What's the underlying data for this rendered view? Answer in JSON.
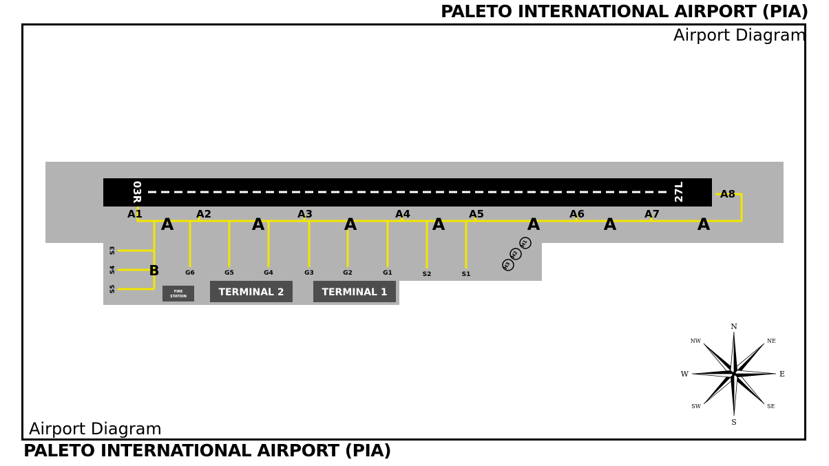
{
  "header": {
    "title": "PALETO INTERNATIONAL AIRPORT (PIA)",
    "subtitle": "Airport Diagram"
  },
  "footer": {
    "title": "PALETO INTERNATIONAL AIRPORT (PIA)",
    "subtitle": "Airport Diagram"
  },
  "runway": {
    "end_left": "03R",
    "end_right": "27L"
  },
  "taxiway_connectors": [
    "A1",
    "A2",
    "A3",
    "A4",
    "A5",
    "A6",
    "A7",
    "A8"
  ],
  "taxiway_a_label": "A",
  "taxiway_b_label": "B",
  "gates": [
    "G6",
    "G5",
    "G4",
    "G3",
    "G2",
    "G1"
  ],
  "stands_south": [
    "S2",
    "S1"
  ],
  "stands_west": [
    "S3",
    "S4",
    "S5"
  ],
  "helipads": [
    "H1",
    "H2",
    "H3"
  ],
  "buildings": {
    "fire_station_line1": "FIRE",
    "fire_station_line2": "STATION",
    "terminal_2": "TERMINAL 2",
    "terminal_1": "TERMINAL 1"
  },
  "compass": {
    "n": "N",
    "ne": "NE",
    "e": "E",
    "se": "SE",
    "s": "S",
    "sw": "SW",
    "w": "W",
    "nw": "NW"
  },
  "colors": {
    "apron": "#b3b3b3",
    "runway": "#000000",
    "taxiway_line": "#f2e600",
    "building": "#4d4d4d"
  }
}
